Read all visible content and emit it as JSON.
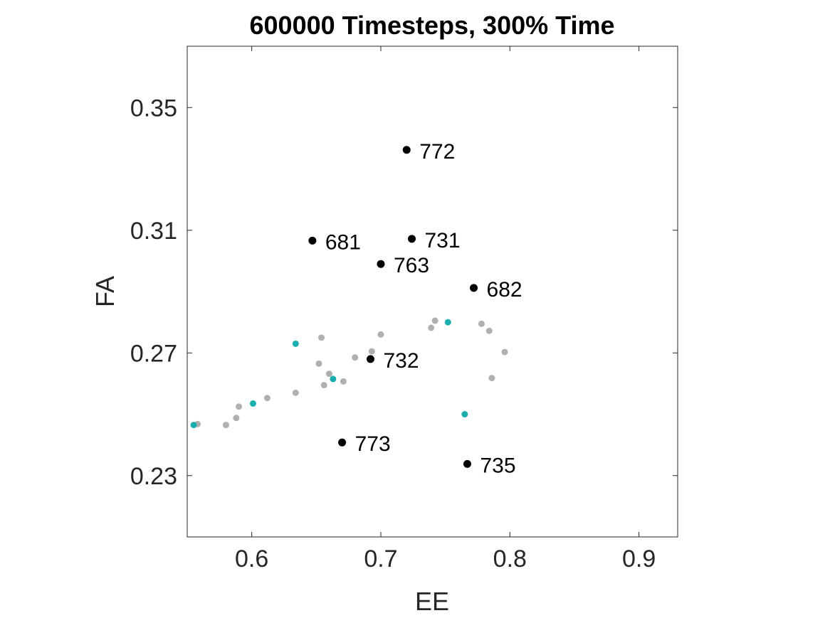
{
  "chart_data": {
    "type": "scatter",
    "title": "600000 Timesteps, 300% Time",
    "xlabel": "EE",
    "ylabel": "FA",
    "xlim": [
      0.55,
      0.93
    ],
    "ylim": [
      0.21,
      0.37
    ],
    "xticks": [
      "0.6",
      "0.7",
      "0.8",
      "0.9"
    ],
    "yticks": [
      "0.23",
      "0.27",
      "0.31",
      "0.35"
    ],
    "grid": false,
    "series": [
      {
        "color": "#b0b0b0",
        "points": [
          {
            "x": 0.558,
            "y": 0.2468
          },
          {
            "x": 0.58,
            "y": 0.2465
          },
          {
            "x": 0.588,
            "y": 0.2488
          },
          {
            "x": 0.59,
            "y": 0.2525
          },
          {
            "x": 0.612,
            "y": 0.2553
          },
          {
            "x": 0.634,
            "y": 0.257
          },
          {
            "x": 0.652,
            "y": 0.2665
          },
          {
            "x": 0.654,
            "y": 0.275
          },
          {
            "x": 0.656,
            "y": 0.2595
          },
          {
            "x": 0.66,
            "y": 0.2632
          },
          {
            "x": 0.671,
            "y": 0.2607
          },
          {
            "x": 0.68,
            "y": 0.2685
          },
          {
            "x": 0.693,
            "y": 0.2705
          },
          {
            "x": 0.7,
            "y": 0.276
          },
          {
            "x": 0.739,
            "y": 0.2782
          },
          {
            "x": 0.742,
            "y": 0.2805
          },
          {
            "x": 0.778,
            "y": 0.2795
          },
          {
            "x": 0.784,
            "y": 0.2772
          },
          {
            "x": 0.786,
            "y": 0.2618
          },
          {
            "x": 0.796,
            "y": 0.2703
          }
        ]
      },
      {
        "color": "#1aaeae",
        "points": [
          {
            "x": 0.555,
            "y": 0.2465
          },
          {
            "x": 0.601,
            "y": 0.2535
          },
          {
            "x": 0.634,
            "y": 0.273
          },
          {
            "x": 0.663,
            "y": 0.2615
          },
          {
            "x": 0.752,
            "y": 0.28
          },
          {
            "x": 0.765,
            "y": 0.25
          }
        ]
      },
      {
        "color": "#000000",
        "points": [
          {
            "x": 0.72,
            "y": 0.3362,
            "label": "772"
          },
          {
            "x": 0.647,
            "y": 0.3066,
            "label": "681"
          },
          {
            "x": 0.724,
            "y": 0.3072,
            "label": "731"
          },
          {
            "x": 0.7,
            "y": 0.299,
            "label": "763"
          },
          {
            "x": 0.772,
            "y": 0.2912,
            "label": "682"
          },
          {
            "x": 0.692,
            "y": 0.268,
            "label": "732"
          },
          {
            "x": 0.67,
            "y": 0.2408,
            "label": "773"
          },
          {
            "x": 0.767,
            "y": 0.2338,
            "label": "735"
          }
        ]
      }
    ]
  }
}
